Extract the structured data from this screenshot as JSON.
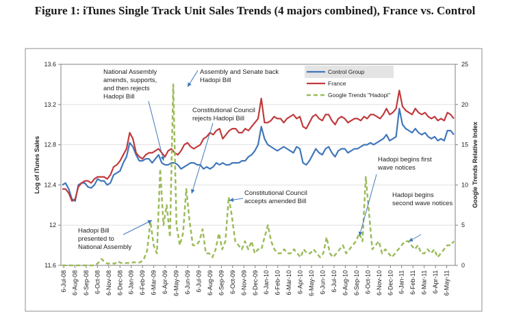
{
  "title": "Figure 1: iTunes Single Track Unit Sales Trends (4 majors combined), France vs. Control",
  "colors": {
    "control": "#3f76ba",
    "france": "#c0393b",
    "google": "#9bbb59"
  },
  "chart_data": {
    "type": "line",
    "title": "Figure 1: iTunes Single Track Unit Sales Trends (4 majors combined), France vs. Control",
    "ylabel": "Log of iTunes Sales",
    "y2label": "Google Trends Relative Index",
    "ylim": [
      11.6,
      13.6
    ],
    "y2lim": [
      0,
      25
    ],
    "yticks": [
      "13.6",
      "13.2",
      "12.8",
      "12.4",
      "12",
      "11.6"
    ],
    "y2ticks": [
      "25",
      "20",
      "15",
      "10",
      "5",
      "0"
    ],
    "x_tick_labels": [
      "6-Jul-08",
      "6-Aug-08",
      "6-Sep-08",
      "6-Oct-08",
      "6-Nov-08",
      "6-Dec-08",
      "6-Jan-09",
      "6-Feb-09",
      "6-Mar-09",
      "6-Apr-09",
      "6-May-09",
      "6-Jun-09",
      "6-Jul-09",
      "6-Aug-09",
      "6-Sep-09",
      "6-Oct-09",
      "6-Nov-09",
      "6-Dec-09",
      "6-Jan-10",
      "6-Feb-10",
      "6-Mar-10",
      "6-Apr-10",
      "6-May-10",
      "6-Jun-10",
      "6-Jul-10",
      "6-Aug-10",
      "6-Sep-10",
      "6-Oct-10",
      "6-Nov-10",
      "6-Dec-10",
      "6-Jan-11",
      "6-Feb-11",
      "6-Mar-11",
      "6-Apr-11",
      "6-May-11"
    ],
    "legend": [
      "Control Group",
      "France",
      "Google Trends \"Hadopi\""
    ],
    "legend_position": "top-right",
    "series": [
      {
        "name": "Control Group",
        "axis": "left",
        "style": "solid",
        "values": [
          12.4,
          12.42,
          12.36,
          12.26,
          12.24,
          12.4,
          12.42,
          12.42,
          12.38,
          12.37,
          12.4,
          12.46,
          12.44,
          12.44,
          12.4,
          12.42,
          12.5,
          12.52,
          12.54,
          12.62,
          12.68,
          12.82,
          12.78,
          12.7,
          12.64,
          12.64,
          12.66,
          12.66,
          12.62,
          12.66,
          12.7,
          12.62,
          12.6,
          12.6,
          12.62,
          12.62,
          12.6,
          12.56,
          12.58,
          12.6,
          12.62,
          12.62,
          12.6,
          12.6,
          12.56,
          12.58,
          12.56,
          12.58,
          12.62,
          12.6,
          12.62,
          12.6,
          12.6,
          12.62,
          12.62,
          12.62,
          12.64,
          12.64,
          12.68,
          12.7,
          12.74,
          12.8,
          12.98,
          12.86,
          12.8,
          12.78,
          12.76,
          12.74,
          12.76,
          12.78,
          12.76,
          12.74,
          12.72,
          12.78,
          12.76,
          12.62,
          12.6,
          12.64,
          12.7,
          12.76,
          12.72,
          12.7,
          12.76,
          12.78,
          12.72,
          12.68,
          12.74,
          12.76,
          12.76,
          12.72,
          12.74,
          12.76,
          12.76,
          12.78,
          12.8,
          12.8,
          12.82,
          12.8,
          12.82,
          12.84,
          12.86,
          12.9,
          12.84,
          12.86,
          12.88,
          13.16,
          13.0,
          12.96,
          12.94,
          12.92,
          12.96,
          12.92,
          12.9,
          12.92,
          12.88,
          12.86,
          12.88,
          12.84,
          12.86,
          12.84,
          12.94,
          12.94,
          12.9
        ]
      },
      {
        "name": "France",
        "axis": "left",
        "style": "solid",
        "values": [
          12.36,
          12.36,
          12.32,
          12.24,
          12.26,
          12.38,
          12.42,
          12.44,
          12.44,
          12.42,
          12.46,
          12.48,
          12.48,
          12.48,
          12.46,
          12.5,
          12.58,
          12.6,
          12.64,
          12.7,
          12.76,
          12.92,
          12.86,
          12.72,
          12.68,
          12.66,
          12.7,
          12.72,
          12.72,
          12.74,
          12.76,
          12.72,
          12.68,
          12.74,
          12.76,
          12.72,
          12.7,
          12.74,
          12.8,
          12.82,
          12.78,
          12.76,
          12.78,
          12.8,
          12.86,
          12.88,
          12.92,
          12.9,
          12.94,
          12.96,
          12.86,
          12.9,
          12.94,
          12.96,
          12.96,
          12.92,
          12.92,
          12.96,
          12.94,
          12.98,
          13.02,
          13.06,
          13.26,
          13.02,
          13.02,
          13.04,
          13.08,
          13.06,
          13.06,
          13.02,
          13.06,
          13.08,
          13.1,
          13.06,
          13.08,
          12.98,
          12.96,
          13.02,
          13.08,
          13.1,
          13.06,
          13.04,
          13.1,
          13.1,
          13.04,
          13.0,
          13.06,
          13.08,
          13.06,
          13.02,
          13.04,
          13.06,
          13.06,
          13.04,
          13.08,
          13.06,
          13.1,
          13.1,
          13.08,
          13.06,
          13.1,
          13.16,
          13.1,
          13.12,
          13.16,
          13.34,
          13.18,
          13.14,
          13.12,
          13.1,
          13.16,
          13.12,
          13.1,
          13.12,
          13.08,
          13.06,
          13.08,
          13.04,
          13.06,
          13.04,
          13.12,
          13.1,
          13.06
        ]
      },
      {
        "name": "Google Trends \"Hadopi\"",
        "axis": "right",
        "style": "dashed",
        "values": [
          0,
          0,
          0,
          0,
          0,
          0,
          0,
          0,
          0,
          0,
          0,
          0.3,
          0.8,
          0.4,
          0.2,
          0.3,
          0.2,
          0.5,
          0.3,
          0.3,
          0.3,
          0.3,
          0.4,
          0.3,
          0.4,
          0.8,
          1.8,
          5.5,
          2.5,
          1.5,
          12.0,
          5.0,
          7.5,
          3.5,
          22.5,
          5.0,
          2.5,
          4.0,
          9.5,
          5.5,
          2.5,
          2.5,
          3.0,
          4.5,
          1.5,
          1.5,
          1.0,
          2.0,
          4.0,
          2.0,
          3.0,
          8.5,
          6.0,
          3.0,
          2.5,
          2.0,
          3.0,
          2.0,
          3.0,
          1.5,
          2.0,
          2.0,
          3.5,
          5.0,
          3.0,
          2.0,
          1.5,
          1.5,
          2.0,
          1.5,
          1.5,
          2.0,
          1.5,
          1.0,
          2.0,
          1.5,
          1.5,
          2.0,
          1.5,
          1.0,
          1.5,
          3.5,
          1.5,
          1.0,
          1.5,
          2.0,
          2.5,
          1.5,
          2.0,
          2.5,
          3.0,
          4.0,
          3.0,
          11.0,
          6.5,
          2.0,
          2.5,
          3.0,
          1.5,
          2.0,
          1.5,
          1.0,
          1.5,
          2.0,
          2.5,
          3.0,
          3.0,
          2.5,
          2.0,
          2.5,
          1.5,
          1.5,
          2.0,
          1.5,
          2.0,
          1.0,
          1.5,
          2.0,
          2.5,
          2.5,
          3.0
        ]
      }
    ],
    "annotations": [
      {
        "id": "national-assembly",
        "lines": [
          "National Assembly",
          "amends, supports,",
          "and then rejects",
          "Hadopi Bill"
        ]
      },
      {
        "id": "assembly-senate",
        "lines": [
          "Assembly and Senate back",
          "Hadopi Bill"
        ]
      },
      {
        "id": "const-council-rejects",
        "lines": [
          "Constitutional Council",
          "rejects Hadopi Bill"
        ]
      },
      {
        "id": "const-council-accepts",
        "lines": [
          "Constitutional Council",
          "accepts amended Bill"
        ]
      },
      {
        "id": "hadopi-first-wave",
        "lines": [
          "Hadopi begins first",
          "wave notices"
        ]
      },
      {
        "id": "hadopi-second-wave",
        "lines": [
          "Hadopi begins",
          "second wave notices"
        ]
      },
      {
        "id": "hadopi-bill-presented",
        "lines": [
          "Hadopi Bill",
          "presented to",
          "National Assembly"
        ]
      }
    ]
  }
}
